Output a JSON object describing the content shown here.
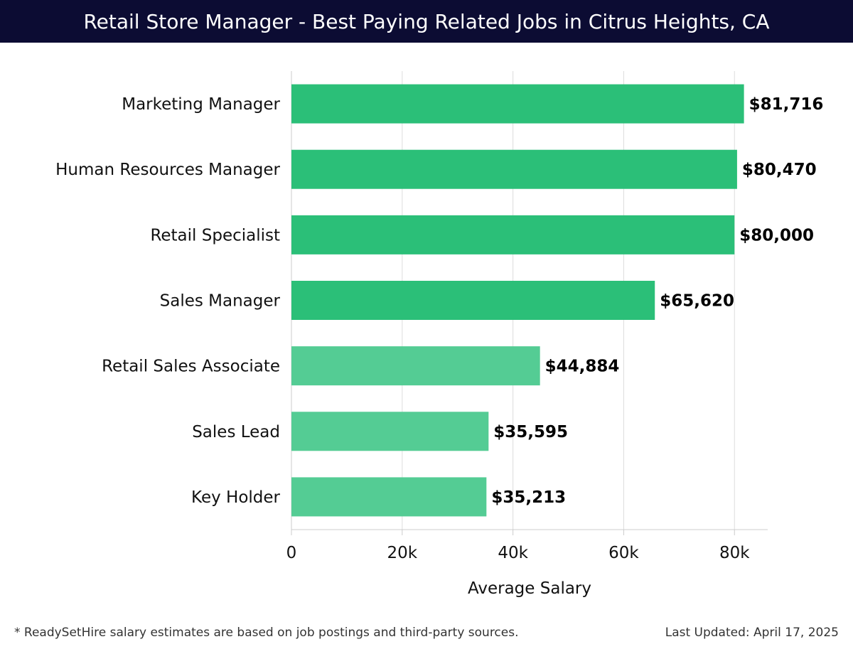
{
  "header": {
    "title": "Retail Store Manager - Best Paying Related Jobs in Citrus Heights, CA"
  },
  "footer": {
    "note": "* ReadySetHire salary estimates are based on job postings and third-party sources.",
    "updated": "Last Updated: April 17, 2025"
  },
  "colors": {
    "header_bg": "#0c0c33",
    "bar_dark": "#2bbf78",
    "bar_light": "#54cc94"
  },
  "chart_data": {
    "type": "bar",
    "orientation": "horizontal",
    "title": "Retail Store Manager - Best Paying Related Jobs in Citrus Heights, CA",
    "xlabel": "Average Salary",
    "ylabel": "",
    "categories": [
      "Marketing Manager",
      "Human Resources Manager",
      "Retail Specialist",
      "Sales Manager",
      "Retail Sales Associate",
      "Sales Lead",
      "Key Holder"
    ],
    "values": [
      81716,
      80470,
      80000,
      65620,
      44884,
      35595,
      35213
    ],
    "value_labels": [
      "$81,716",
      "$80,470",
      "$80,000",
      "$65,620",
      "$44,884",
      "$35,595",
      "$35,213"
    ],
    "bar_shade": [
      "dark",
      "dark",
      "dark",
      "dark",
      "light",
      "light",
      "light"
    ],
    "xticks": [
      0,
      20000,
      40000,
      60000,
      80000
    ],
    "xtick_labels": [
      "0",
      "20k",
      "40k",
      "60k",
      "80k"
    ],
    "xlim": [
      0,
      86000
    ],
    "grid": "vertical",
    "legend": "none"
  }
}
